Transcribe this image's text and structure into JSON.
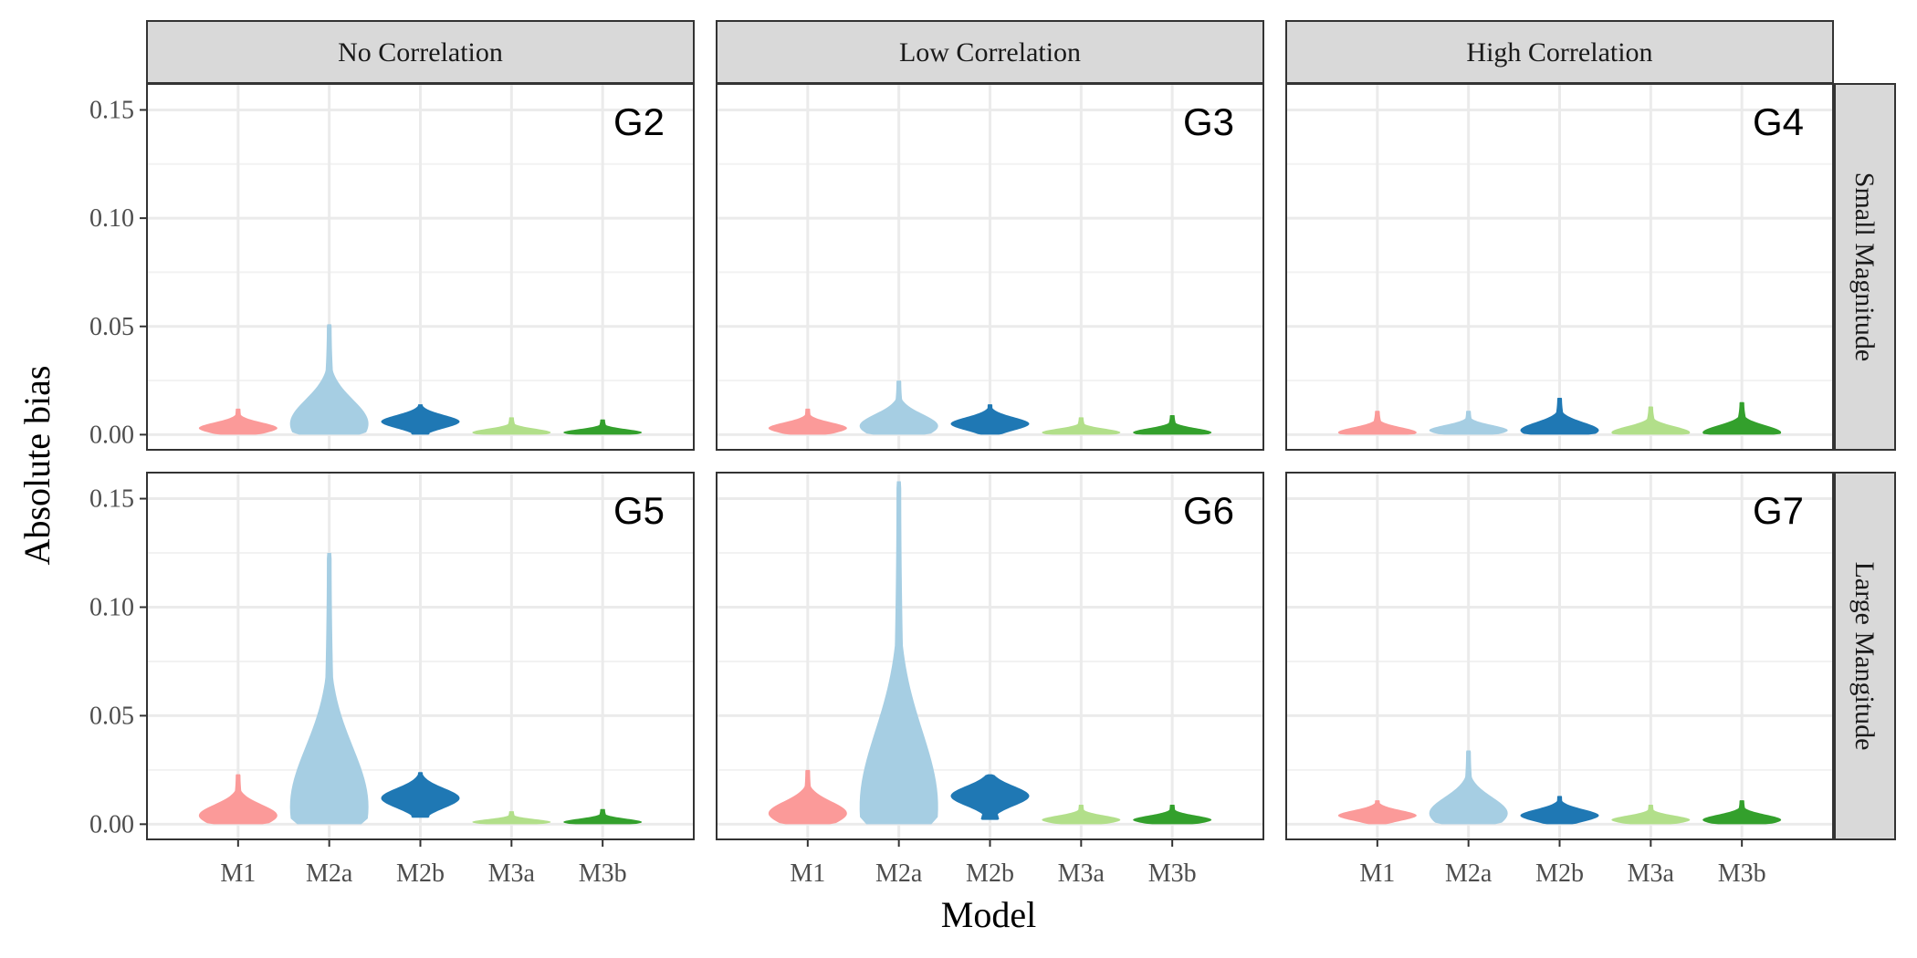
{
  "chart_data": {
    "type": "violin",
    "xlabel": "Model",
    "ylabel": "Absolute bias",
    "categories": [
      "M1",
      "M2a",
      "M2b",
      "M3a",
      "M3b"
    ],
    "ylim": [
      -0.007,
      0.162
    ],
    "yticks": [
      0.0,
      0.05,
      0.1,
      0.15
    ],
    "ytick_labels": [
      "0.00",
      "0.05",
      "0.10",
      "0.15"
    ],
    "grid": true,
    "legend": "none",
    "colors": {
      "M1": "#fb9a99",
      "M2a": "#a6cee3",
      "M2b": "#1f78b4",
      "M3a": "#b2df8a",
      "M3b": "#33a02c"
    },
    "column_facets": [
      "No Correlation",
      "Low Correlation",
      "High Correlation"
    ],
    "row_facets": [
      "Small Magnitude",
      "Large Mangitude"
    ],
    "panels": [
      {
        "tag": "G2",
        "col": 0,
        "row": 0,
        "violins": [
          {
            "model": "M1",
            "min": 0.0,
            "max": 0.012,
            "peak": 0.003
          },
          {
            "model": "M2a",
            "min": 0.0,
            "max": 0.051,
            "peak": 0.005
          },
          {
            "model": "M2b",
            "min": 0.0,
            "max": 0.014,
            "peak": 0.006
          },
          {
            "model": "M3a",
            "min": 0.0,
            "max": 0.008,
            "peak": 0.001
          },
          {
            "model": "M3b",
            "min": 0.0,
            "max": 0.007,
            "peak": 0.001
          }
        ]
      },
      {
        "tag": "G3",
        "col": 1,
        "row": 0,
        "violins": [
          {
            "model": "M1",
            "min": 0.0,
            "max": 0.012,
            "peak": 0.003
          },
          {
            "model": "M2a",
            "min": 0.0,
            "max": 0.025,
            "peak": 0.004
          },
          {
            "model": "M2b",
            "min": 0.0,
            "max": 0.014,
            "peak": 0.005
          },
          {
            "model": "M3a",
            "min": 0.0,
            "max": 0.008,
            "peak": 0.001
          },
          {
            "model": "M3b",
            "min": 0.0,
            "max": 0.009,
            "peak": 0.001
          }
        ]
      },
      {
        "tag": "G4",
        "col": 2,
        "row": 0,
        "violins": [
          {
            "model": "M1",
            "min": 0.0,
            "max": 0.011,
            "peak": 0.001
          },
          {
            "model": "M2a",
            "min": 0.0,
            "max": 0.011,
            "peak": 0.002
          },
          {
            "model": "M2b",
            "min": 0.0,
            "max": 0.017,
            "peak": 0.002
          },
          {
            "model": "M3a",
            "min": 0.0,
            "max": 0.013,
            "peak": 0.001
          },
          {
            "model": "M3b",
            "min": 0.0,
            "max": 0.015,
            "peak": 0.001
          }
        ]
      },
      {
        "tag": "G5",
        "col": 0,
        "row": 1,
        "violins": [
          {
            "model": "M1",
            "min": 0.0,
            "max": 0.023,
            "peak": 0.004
          },
          {
            "model": "M2a",
            "min": 0.0,
            "max": 0.125,
            "peak": 0.008
          },
          {
            "model": "M2b",
            "min": 0.003,
            "max": 0.024,
            "peak": 0.012
          },
          {
            "model": "M3a",
            "min": 0.0,
            "max": 0.006,
            "peak": 0.001
          },
          {
            "model": "M3b",
            "min": 0.0,
            "max": 0.007,
            "peak": 0.001
          }
        ]
      },
      {
        "tag": "G6",
        "col": 1,
        "row": 1,
        "violins": [
          {
            "model": "M1",
            "min": 0.0,
            "max": 0.025,
            "peak": 0.005
          },
          {
            "model": "M2a",
            "min": 0.0,
            "max": 0.158,
            "peak": 0.008
          },
          {
            "model": "M2b",
            "min": 0.002,
            "max": 0.023,
            "peak": 0.013
          },
          {
            "model": "M3a",
            "min": 0.0,
            "max": 0.009,
            "peak": 0.002
          },
          {
            "model": "M3b",
            "min": 0.0,
            "max": 0.009,
            "peak": 0.002
          }
        ]
      },
      {
        "tag": "G7",
        "col": 2,
        "row": 1,
        "violins": [
          {
            "model": "M1",
            "min": 0.0,
            "max": 0.011,
            "peak": 0.004
          },
          {
            "model": "M2a",
            "min": 0.0,
            "max": 0.034,
            "peak": 0.005
          },
          {
            "model": "M2b",
            "min": 0.0,
            "max": 0.013,
            "peak": 0.004
          },
          {
            "model": "M3a",
            "min": 0.0,
            "max": 0.009,
            "peak": 0.002
          },
          {
            "model": "M3b",
            "min": 0.0,
            "max": 0.011,
            "peak": 0.002
          }
        ]
      }
    ]
  }
}
